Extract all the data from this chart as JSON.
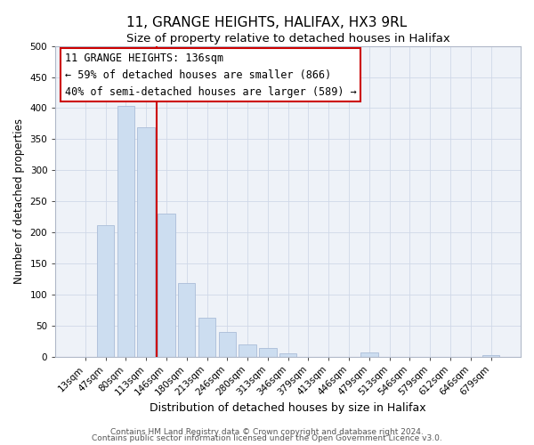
{
  "title": "11, GRANGE HEIGHTS, HALIFAX, HX3 9RL",
  "subtitle": "Size of property relative to detached houses in Halifax",
  "xlabel": "Distribution of detached houses by size in Halifax",
  "ylabel": "Number of detached properties",
  "bar_labels": [
    "13sqm",
    "47sqm",
    "80sqm",
    "113sqm",
    "146sqm",
    "180sqm",
    "213sqm",
    "246sqm",
    "280sqm",
    "313sqm",
    "346sqm",
    "379sqm",
    "413sqm",
    "446sqm",
    "479sqm",
    "513sqm",
    "546sqm",
    "579sqm",
    "612sqm",
    "646sqm",
    "679sqm"
  ],
  "bar_values": [
    0,
    212,
    403,
    369,
    230,
    118,
    63,
    39,
    20,
    14,
    5,
    0,
    0,
    0,
    7,
    0,
    0,
    0,
    0,
    0,
    2
  ],
  "bar_color": "#ccddf0",
  "bar_edge_color": "#aabdd8",
  "vline_x_index": 4,
  "vline_color": "#cc0000",
  "annotation_text": "11 GRANGE HEIGHTS: 136sqm\n← 59% of detached houses are smaller (866)\n40% of semi-detached houses are larger (589) →",
  "annotation_box_color": "#ffffff",
  "annotation_box_edge": "#cc0000",
  "ylim": [
    0,
    500
  ],
  "yticks": [
    0,
    50,
    100,
    150,
    200,
    250,
    300,
    350,
    400,
    450,
    500
  ],
  "footer1": "Contains HM Land Registry data © Crown copyright and database right 2024.",
  "footer2": "Contains public sector information licensed under the Open Government Licence v3.0.",
  "title_fontsize": 11,
  "subtitle_fontsize": 9.5,
  "xlabel_fontsize": 9,
  "ylabel_fontsize": 8.5,
  "tick_fontsize": 7.5,
  "annotation_fontsize": 8.5,
  "footer_fontsize": 6.5,
  "bg_color": "#eef2f8",
  "grid_color": "#d0d8e8"
}
